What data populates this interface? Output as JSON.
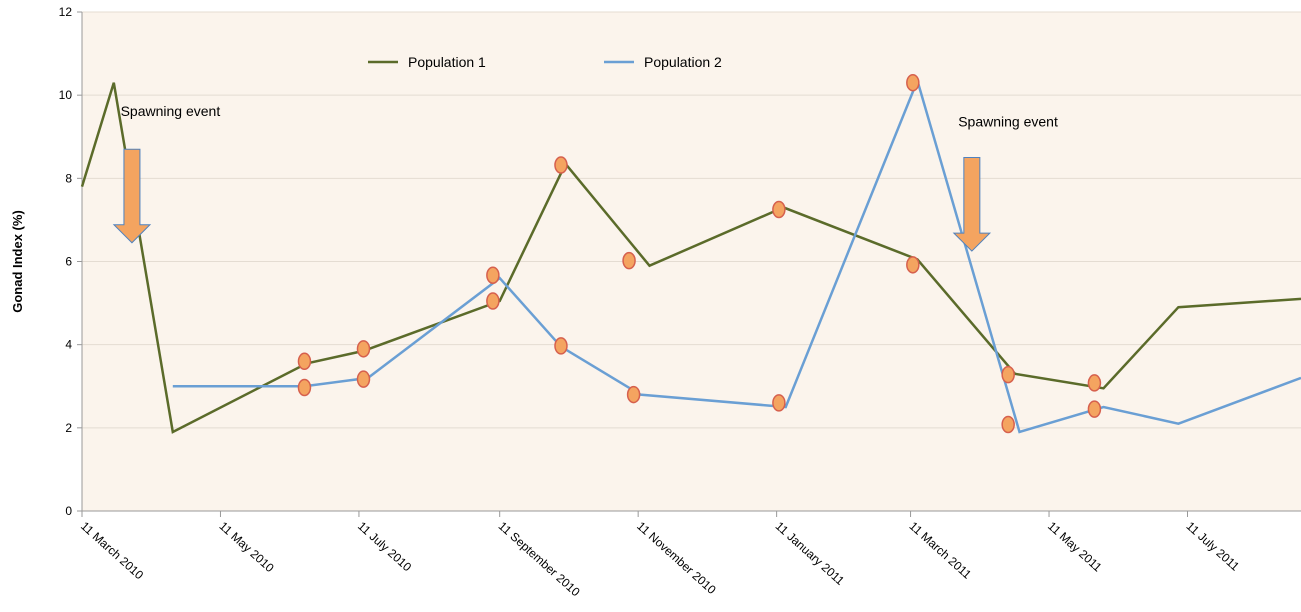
{
  "chart_data": {
    "type": "line",
    "title": "",
    "xlabel": "",
    "ylabel": "Gonad Index (%)",
    "ylim": [
      0,
      12
    ],
    "y_ticks": [
      "0",
      "2",
      "4",
      "6",
      "8",
      "10",
      "12"
    ],
    "x_tick_labels": [
      "11 March 2010",
      "11 May 2010",
      "11 July 2010",
      "11 September 2010",
      "11 November 2010",
      "11 January 2011",
      "11 March 2011",
      "11 May 2011",
      "11 July 2011"
    ],
    "x_tick_dates": [
      "2010-03-11",
      "2010-05-11",
      "2010-07-11",
      "2010-09-11",
      "2010-11-11",
      "2011-01-11",
      "2011-03-11",
      "2011-05-11",
      "2011-07-11"
    ],
    "xlim": [
      "2010-03-11",
      "2011-08-30"
    ],
    "grid": true,
    "legend_position": "top",
    "series": [
      {
        "name": "Population 1",
        "color": "#5b6b2a",
        "points": [
          [
            "2010-03-11",
            7.8
          ],
          [
            "2010-03-25",
            10.3
          ],
          [
            "2010-04-20",
            1.9
          ],
          [
            "2010-06-18",
            3.55
          ],
          [
            "2010-07-13",
            3.85
          ],
          [
            "2010-09-11",
            5.05
          ],
          [
            "2010-10-10",
            8.35
          ],
          [
            "2010-11-16",
            5.9
          ],
          [
            "2011-01-14",
            7.3
          ],
          [
            "2011-03-14",
            6.05
          ],
          [
            "2011-04-26",
            3.3
          ],
          [
            "2011-06-04",
            2.95
          ],
          [
            "2011-07-07",
            4.9
          ],
          [
            "2011-08-30",
            5.1
          ]
        ]
      },
      {
        "name": "Population 2",
        "color": "#6a9fd4",
        "points": [
          [
            "2010-04-20",
            3.0
          ],
          [
            "2010-06-17",
            3.0
          ],
          [
            "2010-07-15",
            3.2
          ],
          [
            "2010-09-11",
            5.6
          ],
          [
            "2010-10-08",
            3.95
          ],
          [
            "2010-11-12",
            2.8
          ],
          [
            "2011-01-15",
            2.5
          ],
          [
            "2011-03-14",
            10.35
          ],
          [
            "2011-04-28",
            1.9
          ],
          [
            "2011-06-04",
            2.5
          ],
          [
            "2011-07-07",
            2.1
          ],
          [
            "2011-08-30",
            3.2
          ]
        ]
      }
    ],
    "markers": [
      [
        "2010-06-17",
        3.6
      ],
      [
        "2010-06-17",
        2.97
      ],
      [
        "2010-07-13",
        3.9
      ],
      [
        "2010-07-13",
        3.17
      ],
      [
        "2010-09-08",
        5.67
      ],
      [
        "2010-09-08",
        5.05
      ],
      [
        "2010-10-08",
        8.32
      ],
      [
        "2010-10-08",
        3.97
      ],
      [
        "2010-11-07",
        6.02
      ],
      [
        "2010-11-09",
        2.8
      ],
      [
        "2011-01-12",
        7.25
      ],
      [
        "2011-01-12",
        2.6
      ],
      [
        "2011-03-12",
        10.3
      ],
      [
        "2011-03-12",
        5.92
      ],
      [
        "2011-04-23",
        3.28
      ],
      [
        "2011-04-23",
        2.08
      ],
      [
        "2011-05-31",
        3.08
      ],
      [
        "2011-05-31",
        2.45
      ]
    ],
    "annotations": [
      {
        "text": "Spawning event",
        "x": "2010-03-28",
        "y": 9.5
      },
      {
        "text": "Spawning event",
        "x": "2011-04-01",
        "y": 9.25
      }
    ],
    "arrows": [
      {
        "x": "2010-04-02",
        "y_top": 8.7,
        "y_bottom": 6.45
      },
      {
        "x": "2011-04-07",
        "y_top": 8.5,
        "y_bottom": 6.25
      }
    ],
    "colors": {
      "plot_background": "#fbf4ec",
      "marker_fill": "#f4a460",
      "marker_stroke": "#d6604d",
      "arrow_fill": "#f4a460",
      "arrow_stroke": "#4f81bd",
      "grid": "#e4dcd2"
    }
  }
}
